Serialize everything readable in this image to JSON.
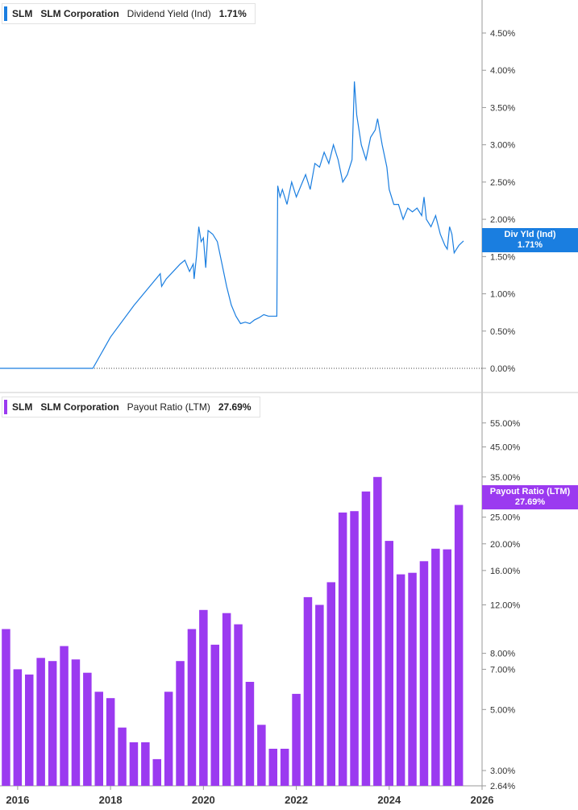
{
  "panels": [
    {
      "ticker": "SLM",
      "company": "SLM Corporation",
      "metric": "Dividend Yield (Ind)",
      "value": "1.71%",
      "badge_line1": "Div Yld (Ind)",
      "badge_line2": "1.71%",
      "color": "#1a7ee0"
    },
    {
      "ticker": "SLM",
      "company": "SLM Corporation",
      "metric": "Payout Ratio (LTM)",
      "value": "27.69%",
      "badge_line1": "Payout Ratio (LTM)",
      "badge_line2": "27.69%",
      "color": "#9b3af0"
    }
  ],
  "chart_data": [
    {
      "type": "line",
      "series": [
        {
          "name": "Dividend Yield (Ind)",
          "x": [
            2015.5,
            2016,
            2016.5,
            2017,
            2017.5,
            2017.62,
            2018,
            2018.5,
            2019.07,
            2019.1,
            2019.2,
            2019.35,
            2019.5,
            2019.6,
            2019.7,
            2019.78,
            2019.8,
            2019.85,
            2019.9,
            2019.95,
            2020.0,
            2020.05,
            2020.1,
            2020.2,
            2020.3,
            2020.4,
            2020.5,
            2020.6,
            2020.7,
            2020.8,
            2020.9,
            2021.0,
            2021.1,
            2021.2,
            2021.3,
            2021.4,
            2021.5,
            2021.58,
            2021.6,
            2021.65,
            2021.7,
            2021.8,
            2021.9,
            2022.0,
            2022.1,
            2022.2,
            2022.3,
            2022.4,
            2022.5,
            2022.6,
            2022.7,
            2022.8,
            2022.9,
            2023.0,
            2023.1,
            2023.2,
            2023.25,
            2023.3,
            2023.4,
            2023.5,
            2023.6,
            2023.7,
            2023.75,
            2023.85,
            2023.95,
            2024.0,
            2024.1,
            2024.2,
            2024.3,
            2024.4,
            2024.5,
            2024.6,
            2024.7,
            2024.75,
            2024.8,
            2024.9,
            2025.0,
            2025.1,
            2025.2,
            2025.25,
            2025.3,
            2025.35,
            2025.4,
            2025.45,
            2025.5,
            2025.6
          ],
          "y": [
            0,
            0,
            0,
            0,
            0,
            0,
            0.42,
            0.84,
            1.27,
            1.1,
            1.2,
            1.3,
            1.4,
            1.45,
            1.3,
            1.4,
            1.2,
            1.5,
            1.9,
            1.7,
            1.75,
            1.35,
            1.85,
            1.8,
            1.7,
            1.4,
            1.1,
            0.85,
            0.7,
            0.6,
            0.62,
            0.6,
            0.65,
            0.68,
            0.72,
            0.7,
            0.7,
            0.7,
            2.45,
            2.3,
            2.4,
            2.2,
            2.5,
            2.3,
            2.45,
            2.6,
            2.4,
            2.75,
            2.7,
            2.9,
            2.75,
            3.0,
            2.8,
            2.5,
            2.6,
            2.8,
            3.85,
            3.4,
            3.0,
            2.8,
            3.1,
            3.2,
            3.35,
            3.0,
            2.7,
            2.4,
            2.2,
            2.2,
            2.0,
            2.15,
            2.1,
            2.15,
            2.05,
            2.3,
            2.0,
            1.9,
            2.05,
            1.8,
            1.65,
            1.6,
            1.9,
            1.8,
            1.55,
            1.6,
            1.65,
            1.71
          ],
          "dashed_zero_line": true
        }
      ],
      "xlim": [
        2015.62,
        2026
      ],
      "ylim": [
        0,
        4.9
      ],
      "y_ticks": [
        "0.00%",
        "0.50%",
        "1.00%",
        "1.50%",
        "2.00%",
        "2.50%",
        "3.00%",
        "3.50%",
        "4.00%",
        "4.50%"
      ],
      "y_tick_values": [
        0,
        0.5,
        1.0,
        1.5,
        2.0,
        2.5,
        3.0,
        3.5,
        4.0,
        4.5
      ]
    },
    {
      "type": "bar",
      "scale": "log",
      "series": [
        {
          "name": "Payout Ratio (LTM)",
          "x": [
            2015.75,
            2016,
            2016.25,
            2016.5,
            2016.75,
            2017,
            2017.25,
            2017.5,
            2017.75,
            2018,
            2018.25,
            2018.5,
            2018.75,
            2019,
            2019.25,
            2019.5,
            2019.75,
            2020,
            2020.25,
            2020.5,
            2020.75,
            2021,
            2021.25,
            2021.5,
            2021.75,
            2022,
            2022.25,
            2022.5,
            2022.75,
            2023,
            2023.25,
            2023.5,
            2023.75,
            2024,
            2024.25,
            2024.5,
            2024.75,
            2025,
            2025.25,
            2025.5
          ],
          "values": [
            9.8,
            7.0,
            6.7,
            7.7,
            7.5,
            8.5,
            7.6,
            6.8,
            5.8,
            5.5,
            4.3,
            3.8,
            3.8,
            3.3,
            5.8,
            7.5,
            9.8,
            11.5,
            8.6,
            11.2,
            10.2,
            6.3,
            4.4,
            3.6,
            3.6,
            5.7,
            12.8,
            12.0,
            14.5,
            26.0,
            26.3,
            31.0,
            35.0,
            20.5,
            15.5,
            15.7,
            17.3,
            19.2,
            19.1,
            27.69
          ]
        }
      ],
      "xlim": [
        2015.62,
        2026
      ],
      "ylim": [
        2.64,
        65
      ],
      "y_ticks": [
        "2.64%",
        "3.00%",
        "5.00%",
        "7.00%",
        "8.00%",
        "12.00%",
        "16.00%",
        "20.00%",
        "25.00%",
        "35.00%",
        "45.00%",
        "55.00%"
      ],
      "y_tick_values": [
        2.64,
        3.0,
        5.0,
        7.0,
        8.0,
        12.0,
        16.0,
        20.0,
        25.0,
        35.0,
        45.0,
        55.0
      ]
    }
  ],
  "x_axis": {
    "ticks": [
      "2016",
      "2018",
      "2020",
      "2022",
      "2024",
      "2026"
    ],
    "tick_values": [
      2016,
      2018,
      2020,
      2022,
      2024,
      2026
    ]
  }
}
